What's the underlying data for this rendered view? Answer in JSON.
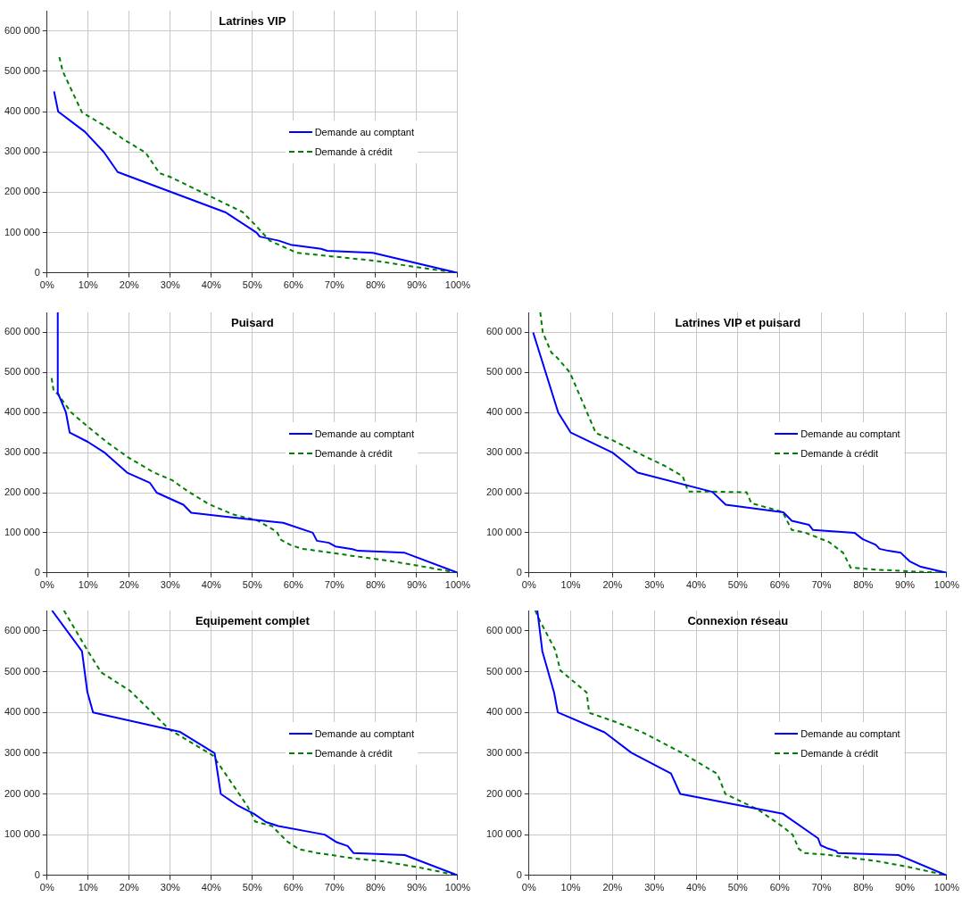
{
  "chart_data": [
    {
      "type": "line",
      "title": "Latrines VIP",
      "xlim": [
        0,
        100
      ],
      "ylim": [
        0,
        650000
      ],
      "xticks": [
        {
          "value": 0,
          "label": "0%"
        },
        {
          "value": 10,
          "label": "10%"
        },
        {
          "value": 20,
          "label": "20%"
        },
        {
          "value": 30,
          "label": "30%"
        },
        {
          "value": 40,
          "label": "40%"
        },
        {
          "value": 50,
          "label": "50%"
        },
        {
          "value": 60,
          "label": "60%"
        },
        {
          "value": 70,
          "label": "70%"
        },
        {
          "value": 80,
          "label": "80%"
        },
        {
          "value": 90,
          "label": "90%"
        },
        {
          "value": 100,
          "label": "100%"
        }
      ],
      "yticks": [
        {
          "value": 0,
          "label": "0"
        },
        {
          "value": 100000,
          "label": "100 000"
        },
        {
          "value": 200000,
          "label": "200 000"
        },
        {
          "value": 300000,
          "label": "300 000"
        },
        {
          "value": 400000,
          "label": "400 000"
        },
        {
          "value": 500000,
          "label": "500 000"
        },
        {
          "value": 600000,
          "label": "600 000"
        }
      ],
      "grid": true,
      "legend": "right",
      "marker": "none",
      "series": [
        {
          "name": "Demande au comptant",
          "color": "#0000ff",
          "line_style": "solid",
          "x": [
            1.7,
            2.7,
            9.2,
            13.8,
            17.2,
            43.5,
            51,
            51.8,
            56.4,
            59.3,
            66.7,
            68.2,
            79.3,
            100
          ],
          "values": [
            450000,
            400000,
            350000,
            300000,
            250000,
            150000,
            100000,
            90000,
            80000,
            70000,
            60000,
            55000,
            50000,
            0
          ]
        },
        {
          "name": "Demande à crédit",
          "color": "#008000",
          "line_style": "dashed",
          "x": [
            3,
            3.8,
            8.5,
            13.8,
            18.5,
            24,
            27.4,
            30,
            39.9,
            47.6,
            50.5,
            54.2,
            60.8,
            70.4,
            80,
            89.5,
            100
          ],
          "values": [
            535000,
            500000,
            398000,
            366000,
            332000,
            298000,
            247000,
            238000,
            189000,
            151000,
            121000,
            80000,
            50000,
            40000,
            30000,
            15000,
            0
          ]
        }
      ]
    },
    {
      "type": "line",
      "title": "Puisard",
      "xlim": [
        0,
        100
      ],
      "ylim": [
        0,
        650000
      ],
      "xticks": [
        {
          "value": 0,
          "label": "0%"
        },
        {
          "value": 10,
          "label": "10%"
        },
        {
          "value": 20,
          "label": "20%"
        },
        {
          "value": 30,
          "label": "30%"
        },
        {
          "value": 40,
          "label": "40%"
        },
        {
          "value": 50,
          "label": "50%"
        },
        {
          "value": 60,
          "label": "60%"
        },
        {
          "value": 70,
          "label": "70%"
        },
        {
          "value": 80,
          "label": "80%"
        },
        {
          "value": 90,
          "label": "90%"
        },
        {
          "value": 100,
          "label": "100%"
        }
      ],
      "yticks": [
        {
          "value": 0,
          "label": "0"
        },
        {
          "value": 100000,
          "label": "100 000"
        },
        {
          "value": 200000,
          "label": "200 000"
        },
        {
          "value": 300000,
          "label": "300 000"
        },
        {
          "value": 400000,
          "label": "400 000"
        },
        {
          "value": 500000,
          "label": "500 000"
        },
        {
          "value": 600000,
          "label": "600 000"
        }
      ],
      "grid": true,
      "legend": "right",
      "marker": "none",
      "series": [
        {
          "name": "Demande au comptant",
          "color": "#0000ff",
          "line_style": "solid",
          "x": [
            2.6,
            2.6,
            4.6,
            5.5,
            9.9,
            14,
            19.5,
            25,
            26.7,
            33.2,
            35.1,
            49.6,
            57.5,
            64.7,
            65.7,
            68.6,
            70.2,
            74.3,
            75.7,
            87.1,
            100
          ],
          "values": [
            650000,
            450000,
            400000,
            350000,
            327000,
            300000,
            250000,
            225000,
            200000,
            170000,
            150000,
            133000,
            125000,
            100000,
            80000,
            75000,
            66000,
            59000,
            55000,
            50000,
            0
          ]
        },
        {
          "name": "Demande à crédit",
          "color": "#008000",
          "line_style": "dashed",
          "x": [
            1.1,
            1.6,
            2.6,
            5.9,
            9.9,
            14.7,
            19.9,
            26.1,
            30.5,
            34.2,
            39.3,
            45.2,
            51.1,
            55.9,
            57,
            59.2,
            62.1,
            67.3,
            74.6,
            82,
            90.8,
            100
          ],
          "values": [
            486000,
            454000,
            446000,
            400000,
            365000,
            325000,
            287000,
            250000,
            231000,
            204000,
            172000,
            146000,
            131000,
            103000,
            82000,
            70000,
            60000,
            53000,
            42000,
            32000,
            17000,
            0
          ]
        }
      ]
    },
    {
      "type": "line",
      "title": "Latrines VIP et puisard",
      "xlim": [
        0,
        100
      ],
      "ylim": [
        0,
        650000
      ],
      "xticks": [
        {
          "value": 0,
          "label": "0%"
        },
        {
          "value": 10,
          "label": "10%"
        },
        {
          "value": 20,
          "label": "20%"
        },
        {
          "value": 30,
          "label": "30%"
        },
        {
          "value": 40,
          "label": "40%"
        },
        {
          "value": 50,
          "label": "50%"
        },
        {
          "value": 60,
          "label": "60%"
        },
        {
          "value": 70,
          "label": "70%"
        },
        {
          "value": 80,
          "label": "80%"
        },
        {
          "value": 90,
          "label": "90%"
        },
        {
          "value": 100,
          "label": "100%"
        }
      ],
      "yticks": [
        {
          "value": 0,
          "label": "0"
        },
        {
          "value": 100000,
          "label": "100 000"
        },
        {
          "value": 200000,
          "label": "200 000"
        },
        {
          "value": 300000,
          "label": "300 000"
        },
        {
          "value": 400000,
          "label": "400 000"
        },
        {
          "value": 500000,
          "label": "500 000"
        },
        {
          "value": 600000,
          "label": "600 000"
        }
      ],
      "grid": true,
      "legend": "right",
      "marker": "none",
      "series": [
        {
          "name": "Demande au comptant",
          "color": "#0000ff",
          "line_style": "solid",
          "x": [
            1,
            7,
            10,
            20,
            26,
            43.9,
            47.1,
            60.9,
            62.9,
            67,
            68,
            77.9,
            79.9,
            83,
            83.9,
            86,
            89,
            91.1,
            93.8,
            100
          ],
          "values": [
            600000,
            400000,
            350000,
            300000,
            250000,
            202000,
            170000,
            151000,
            130000,
            120000,
            107000,
            100000,
            84000,
            70000,
            60000,
            55000,
            50000,
            29000,
            15000,
            0
          ]
        },
        {
          "name": "Demande à crédit",
          "color": "#008000",
          "line_style": "dashed",
          "x": [
            2.7,
            3.3,
            5.4,
            6.3,
            9.8,
            13,
            16,
            20,
            25.3,
            32.3,
            36.8,
            38.1,
            42,
            52.1,
            53.2,
            60.7,
            62.9,
            66.2,
            69.6,
            71.8,
            75.2,
            77,
            83,
            90.5,
            100
          ],
          "values": [
            650000,
            600000,
            549000,
            542000,
            500000,
            422000,
            349000,
            331000,
            303000,
            268000,
            241000,
            203000,
            203000,
            201000,
            174000,
            152000,
            107000,
            100000,
            86000,
            77000,
            50000,
            13000,
            8000,
            4000,
            0
          ]
        }
      ]
    },
    {
      "type": "line",
      "title": "Equipement complet",
      "xlim": [
        0,
        100
      ],
      "ylim": [
        0,
        650000
      ],
      "xticks": [
        {
          "value": 0,
          "label": "0%"
        },
        {
          "value": 10,
          "label": "10%"
        },
        {
          "value": 20,
          "label": "20%"
        },
        {
          "value": 30,
          "label": "30%"
        },
        {
          "value": 40,
          "label": "40%"
        },
        {
          "value": 50,
          "label": "50%"
        },
        {
          "value": 60,
          "label": "60%"
        },
        {
          "value": 70,
          "label": "70%"
        },
        {
          "value": 80,
          "label": "80%"
        },
        {
          "value": 90,
          "label": "90%"
        },
        {
          "value": 100,
          "label": "100%"
        }
      ],
      "yticks": [
        {
          "value": 0,
          "label": "0"
        },
        {
          "value": 100000,
          "label": "100 000"
        },
        {
          "value": 200000,
          "label": "200 000"
        },
        {
          "value": 300000,
          "label": "300 000"
        },
        {
          "value": 400000,
          "label": "400 000"
        },
        {
          "value": 500000,
          "label": "500 000"
        },
        {
          "value": 600000,
          "label": "600 000"
        }
      ],
      "grid": true,
      "legend": "right",
      "marker": "none",
      "series": [
        {
          "name": "Demande au comptant",
          "color": "#0000ff",
          "line_style": "solid",
          "x": [
            1.2,
            8.5,
            9.8,
            11.2,
            32.4,
            40.8,
            42.3,
            46.5,
            50.4,
            53.3,
            56.3,
            67.6,
            70.6,
            73.2,
            74.6,
            87.1,
            100
          ],
          "values": [
            650000,
            550000,
            450000,
            400000,
            352000,
            300000,
            200000,
            171000,
            151000,
            131000,
            121000,
            100000,
            81000,
            72000,
            55000,
            50000,
            0
          ]
        },
        {
          "name": "Demande à crédit",
          "color": "#008000",
          "line_style": "dashed",
          "x": [
            4.1,
            9.9,
            13.2,
            20.2,
            29.8,
            40.4,
            46.7,
            48.9,
            50.7,
            54.8,
            58.5,
            61.4,
            65.8,
            74.6,
            82,
            90.8,
            100
          ],
          "values": [
            650000,
            551000,
            498000,
            453000,
            358000,
            294000,
            201000,
            168000,
            132000,
            121000,
            83000,
            64000,
            55000,
            42000,
            34000,
            19000,
            0
          ]
        }
      ]
    },
    {
      "type": "line",
      "title": "Connexion réseau",
      "xlim": [
        0,
        100
      ],
      "ylim": [
        0,
        650000
      ],
      "xticks": [
        {
          "value": 0,
          "label": "0%"
        },
        {
          "value": 10,
          "label": "10%"
        },
        {
          "value": 20,
          "label": "20%"
        },
        {
          "value": 30,
          "label": "30%"
        },
        {
          "value": 40,
          "label": "40%"
        },
        {
          "value": 50,
          "label": "50%"
        },
        {
          "value": 60,
          "label": "60%"
        },
        {
          "value": 70,
          "label": "70%"
        },
        {
          "value": 80,
          "label": "80%"
        },
        {
          "value": 90,
          "label": "90%"
        },
        {
          "value": 100,
          "label": "100%"
        }
      ],
      "yticks": [
        {
          "value": 0,
          "label": "0"
        },
        {
          "value": 100000,
          "label": "100 000"
        },
        {
          "value": 200000,
          "label": "200 000"
        },
        {
          "value": 300000,
          "label": "300 000"
        },
        {
          "value": 400000,
          "label": "400 000"
        },
        {
          "value": 500000,
          "label": "500 000"
        },
        {
          "value": 600000,
          "label": "600 000"
        }
      ],
      "grid": true,
      "legend": "right",
      "marker": "none",
      "series": [
        {
          "name": "Demande au comptant",
          "color": "#0000ff",
          "line_style": "solid",
          "x": [
            2,
            3.2,
            6,
            6.9,
            18.1,
            24.5,
            34,
            36.2,
            60.8,
            69.2,
            69.8,
            71.3,
            73.5,
            73.9,
            88.4,
            100
          ],
          "values": [
            650000,
            550000,
            449000,
            400000,
            351000,
            301000,
            250000,
            200000,
            151000,
            91000,
            74000,
            67000,
            60000,
            55000,
            50000,
            0
          ]
        },
        {
          "name": "Demande à crédit",
          "color": "#008000",
          "line_style": "dashed",
          "x": [
            1.5,
            2.6,
            6.3,
            7.5,
            13.8,
            14.4,
            19.8,
            27.2,
            36.9,
            45.1,
            47,
            54.9,
            60.8,
            63.1,
            64.6,
            66,
            72,
            83.2,
            90.7,
            100
          ],
          "values": [
            650000,
            625000,
            553000,
            503000,
            449000,
            399000,
            380000,
            351000,
            299000,
            249000,
            200000,
            161000,
            119000,
            100000,
            65000,
            55000,
            50000,
            35000,
            21000,
            0
          ]
        }
      ]
    }
  ]
}
